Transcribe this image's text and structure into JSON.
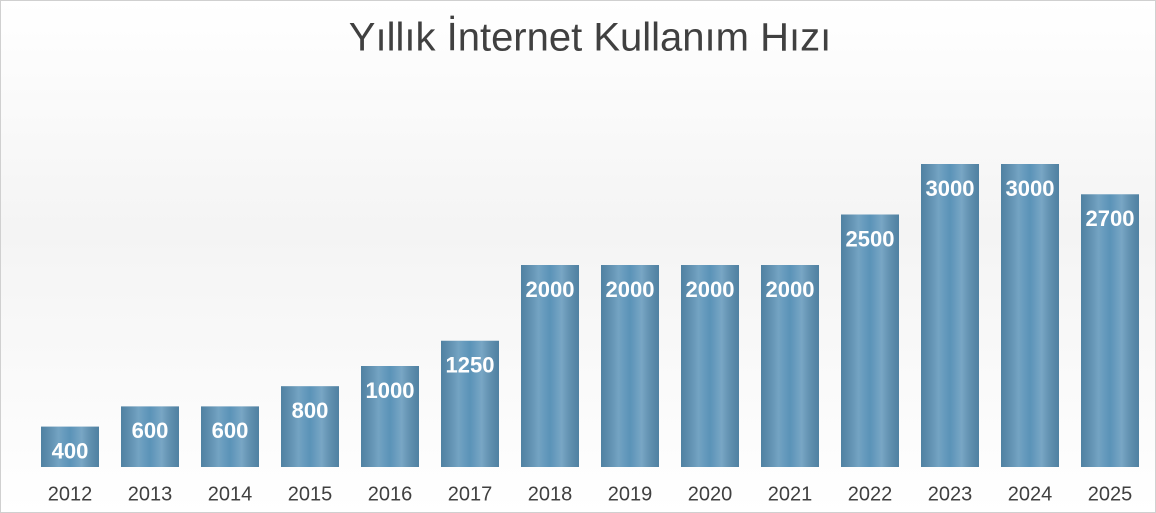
{
  "chart_data": {
    "type": "bar",
    "title": "Yıllık İnternet Kullanım Hızı",
    "categories": [
      "2012",
      "2013",
      "2014",
      "2015",
      "2016",
      "2017",
      "2018",
      "2019",
      "2020",
      "2021",
      "2022",
      "2023",
      "2024",
      "2025"
    ],
    "values": [
      400,
      600,
      600,
      800,
      1000,
      1250,
      2000,
      2000,
      2000,
      2000,
      2500,
      3000,
      3000,
      2700
    ],
    "color": "#5b93b8"
  }
}
